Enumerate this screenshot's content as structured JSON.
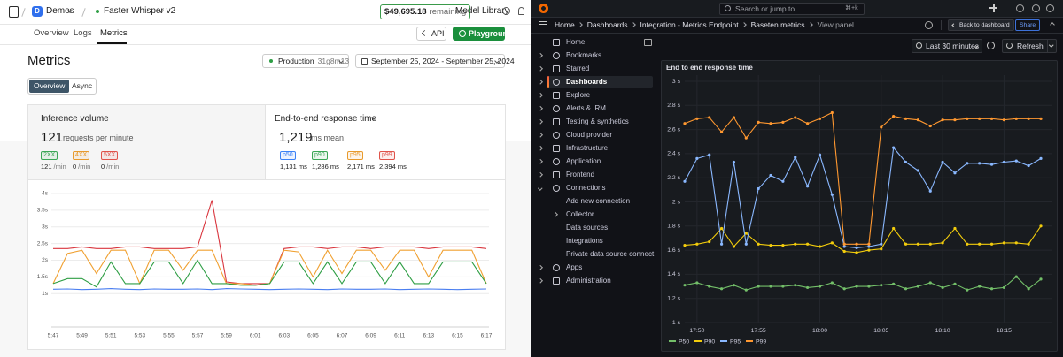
{
  "baseten": {
    "org_initial": "D",
    "org": "Demos",
    "model": "Faster Whisper v2",
    "balance": "$49,695.18",
    "balance_suffix": "remaining",
    "model_library": "Model Library",
    "tabs": [
      "Overview",
      "Logs",
      "Metrics"
    ],
    "active_tab": 2,
    "api": "API",
    "playground": "Playground",
    "title": "Metrics",
    "environment": "Production",
    "environment_id": "31g8m13",
    "date_range": "September 25, 2024 - September 25, 2024",
    "views": [
      "Overview",
      "Async"
    ],
    "active_view": 0,
    "inference": {
      "title": "Inference volume",
      "value": "121",
      "unit": "requests per minute",
      "codes": [
        {
          "label": "2XX",
          "value": "121",
          "unit": "/min",
          "color": "#3aa655"
        },
        {
          "label": "4XX",
          "value": "0",
          "unit": "/min",
          "color": "#e89a2c"
        },
        {
          "label": "5XX",
          "value": "0",
          "unit": "/min",
          "color": "#e0534a"
        }
      ]
    },
    "latency": {
      "title": "End-to-end response time",
      "value": "1,219",
      "unit": "ms mean",
      "percentiles": [
        {
          "label": "p50",
          "value": "1,131 ms",
          "color": "#3b82f6"
        },
        {
          "label": "p90",
          "value": "1,286 ms",
          "color": "#3aa655"
        },
        {
          "label": "p95",
          "value": "2,171 ms",
          "color": "#e89a2c"
        },
        {
          "label": "p99",
          "value": "2,394 ms",
          "color": "#e0534a"
        }
      ]
    },
    "chart": {
      "ylim": [
        0,
        4
      ],
      "yticks": [
        {
          "value": 1,
          "label": "1s"
        },
        {
          "value": 1.5,
          "label": "1.5s"
        },
        {
          "value": 2,
          "label": "2s"
        },
        {
          "value": 2.5,
          "label": "2.5s"
        },
        {
          "value": 3,
          "label": "3s"
        },
        {
          "value": 3.5,
          "label": "3.5s"
        },
        {
          "value": 4,
          "label": "4s"
        }
      ],
      "categories": [
        "5:47",
        null,
        "5:49",
        null,
        "5:51",
        null,
        "5:53",
        null,
        "5:55",
        null,
        "5:57",
        null,
        "5:59",
        null,
        "6:01",
        null,
        "6:03",
        null,
        "6:05",
        null,
        "6:07",
        null,
        "6:09",
        null,
        "6:11",
        null,
        "6:13",
        null,
        "6:15",
        null,
        "6:17"
      ],
      "series": [
        {
          "color": "#d9363e",
          "values": [
            2.35,
            2.35,
            2.4,
            2.35,
            2.35,
            2.4,
            2.4,
            2.35,
            2.35,
            2.35,
            2.4,
            3.8,
            1.35,
            1.3,
            1.3,
            1.3,
            2.35,
            2.4,
            2.4,
            2.35,
            2.4,
            2.4,
            2.35,
            2.4,
            2.4,
            2.4,
            2.35,
            2.4,
            2.4,
            2.4,
            2.35
          ]
        },
        {
          "color": "#f0a030",
          "values": [
            1.3,
            2.2,
            2.3,
            1.6,
            2.3,
            2.3,
            1.3,
            2.3,
            2.3,
            1.7,
            2.3,
            2.3,
            1.3,
            1.3,
            1.25,
            1.3,
            2.3,
            2.25,
            1.5,
            2.3,
            1.6,
            2.3,
            2.3,
            1.7,
            2.3,
            2.3,
            1.5,
            2.3,
            2.3,
            2.3,
            1.3
          ]
        },
        {
          "color": "#2e9e44",
          "values": [
            1.3,
            1.45,
            1.45,
            1.2,
            1.95,
            1.3,
            1.3,
            1.95,
            1.95,
            1.3,
            2.0,
            1.3,
            1.3,
            1.25,
            1.25,
            1.3,
            1.95,
            1.95,
            1.3,
            1.95,
            1.3,
            1.95,
            1.95,
            1.3,
            1.95,
            1.3,
            1.3,
            1.95,
            1.95,
            1.95,
            1.3
          ]
        },
        {
          "color": "#4a7ef0",
          "values": [
            1.13,
            1.14,
            1.12,
            1.13,
            1.15,
            1.13,
            1.12,
            1.14,
            1.13,
            1.13,
            1.14,
            1.12,
            1.15,
            1.14,
            1.13,
            1.12,
            1.13,
            1.14,
            1.13,
            1.12,
            1.14,
            1.13,
            1.13,
            1.14,
            1.12,
            1.13,
            1.14,
            1.13,
            1.12,
            1.13,
            1.14
          ]
        }
      ]
    }
  },
  "grafana": {
    "search": "Search or jump to...",
    "shortcut": "⌘+k",
    "breadcrumbs": [
      "Home",
      "Dashboards",
      "Integration - Metrics Endpoint",
      "Baseten metrics",
      "View panel"
    ],
    "back": "Back to dashboard",
    "share": "Share",
    "nav": [
      {
        "label": "Home"
      },
      {
        "label": "Bookmarks",
        "expand": "right"
      },
      {
        "label": "Starred",
        "expand": "right"
      },
      {
        "label": "Dashboards",
        "expand": "right"
      },
      {
        "label": "Explore",
        "expand": "right"
      },
      {
        "label": "Alerts & IRM",
        "expand": "right"
      },
      {
        "label": "Testing & synthetics",
        "expand": "right"
      },
      {
        "label": "Cloud provider",
        "expand": "right"
      },
      {
        "label": "Infrastructure",
        "expand": "right"
      },
      {
        "label": "Application",
        "expand": "right"
      },
      {
        "label": "Frontend",
        "expand": "right"
      },
      {
        "label": "Connections",
        "expand": "down"
      },
      {
        "label": "Add new connection",
        "level": 1
      },
      {
        "label": "Collector",
        "level": 1,
        "expand": "right"
      },
      {
        "label": "Data sources",
        "level": 1
      },
      {
        "label": "Integrations",
        "level": 1
      },
      {
        "label": "Private data source connect",
        "level": 1
      },
      {
        "label": "Apps",
        "expand": "right"
      },
      {
        "label": "Administration",
        "expand": "right"
      }
    ],
    "active_nav": 3,
    "time_range": "Last 30 minutes",
    "refresh": "Refresh",
    "panel": {
      "title": "End to end response time",
      "ylim": [
        1,
        3
      ],
      "yticks": [
        {
          "value": 1,
          "label": "1 s"
        },
        {
          "value": 1.2,
          "label": "1.2 s"
        },
        {
          "value": 1.4,
          "label": "1.4 s"
        },
        {
          "value": 1.6,
          "label": "1.6 s"
        },
        {
          "value": 1.8,
          "label": "1.8 s"
        },
        {
          "value": 2,
          "label": "2 s"
        },
        {
          "value": 2.2,
          "label": "2.2 s"
        },
        {
          "value": 2.4,
          "label": "2.4 s"
        },
        {
          "value": 2.6,
          "label": "2.6 s"
        },
        {
          "value": 2.8,
          "label": "2.8 s"
        },
        {
          "value": 3,
          "label": "3 s"
        }
      ],
      "categories": [
        null,
        "17:50",
        null,
        null,
        null,
        null,
        "17:55",
        null,
        null,
        null,
        null,
        "18:00",
        null,
        null,
        null,
        null,
        "18:05",
        null,
        null,
        null,
        null,
        "18:10",
        null,
        null,
        null,
        null,
        "18:15",
        null,
        null,
        null
      ],
      "series": [
        {
          "name": "P50",
          "color": "#73bf69",
          "values": [
            1.31,
            1.33,
            1.3,
            1.28,
            1.31,
            1.27,
            1.3,
            1.3,
            1.3,
            1.31,
            1.29,
            1.3,
            1.33,
            1.28,
            1.3,
            1.3,
            1.31,
            1.32,
            1.28,
            1.3,
            1.33,
            1.29,
            1.32,
            1.27,
            1.3,
            1.28,
            1.29,
            1.38,
            1.28,
            1.36
          ]
        },
        {
          "name": "P90",
          "color": "#f2cc0c",
          "values": [
            1.64,
            1.65,
            1.67,
            1.78,
            1.63,
            1.74,
            1.65,
            1.64,
            1.64,
            1.65,
            1.65,
            1.63,
            1.66,
            1.59,
            1.58,
            1.6,
            1.61,
            1.78,
            1.65,
            1.65,
            1.65,
            1.66,
            1.78,
            1.65,
            1.65,
            1.65,
            1.66,
            1.66,
            1.65,
            1.8
          ]
        },
        {
          "name": "P95",
          "color": "#8ab8ff",
          "values": [
            2.17,
            2.36,
            2.39,
            1.65,
            2.33,
            1.65,
            2.11,
            2.22,
            2.17,
            2.37,
            2.13,
            2.39,
            2.06,
            1.63,
            1.62,
            1.63,
            1.65,
            2.45,
            2.33,
            2.26,
            2.09,
            2.33,
            2.24,
            2.32,
            2.32,
            2.31,
            2.33,
            2.34,
            2.3,
            2.36
          ]
        },
        {
          "name": "P99",
          "color": "#ff9830",
          "values": [
            2.65,
            2.69,
            2.7,
            2.58,
            2.7,
            2.53,
            2.66,
            2.65,
            2.66,
            2.7,
            2.65,
            2.69,
            2.74,
            1.65,
            1.65,
            1.65,
            2.62,
            2.71,
            2.69,
            2.68,
            2.63,
            2.68,
            2.68,
            2.69,
            2.69,
            2.69,
            2.68,
            2.69,
            2.69,
            2.69
          ]
        }
      ]
    }
  }
}
